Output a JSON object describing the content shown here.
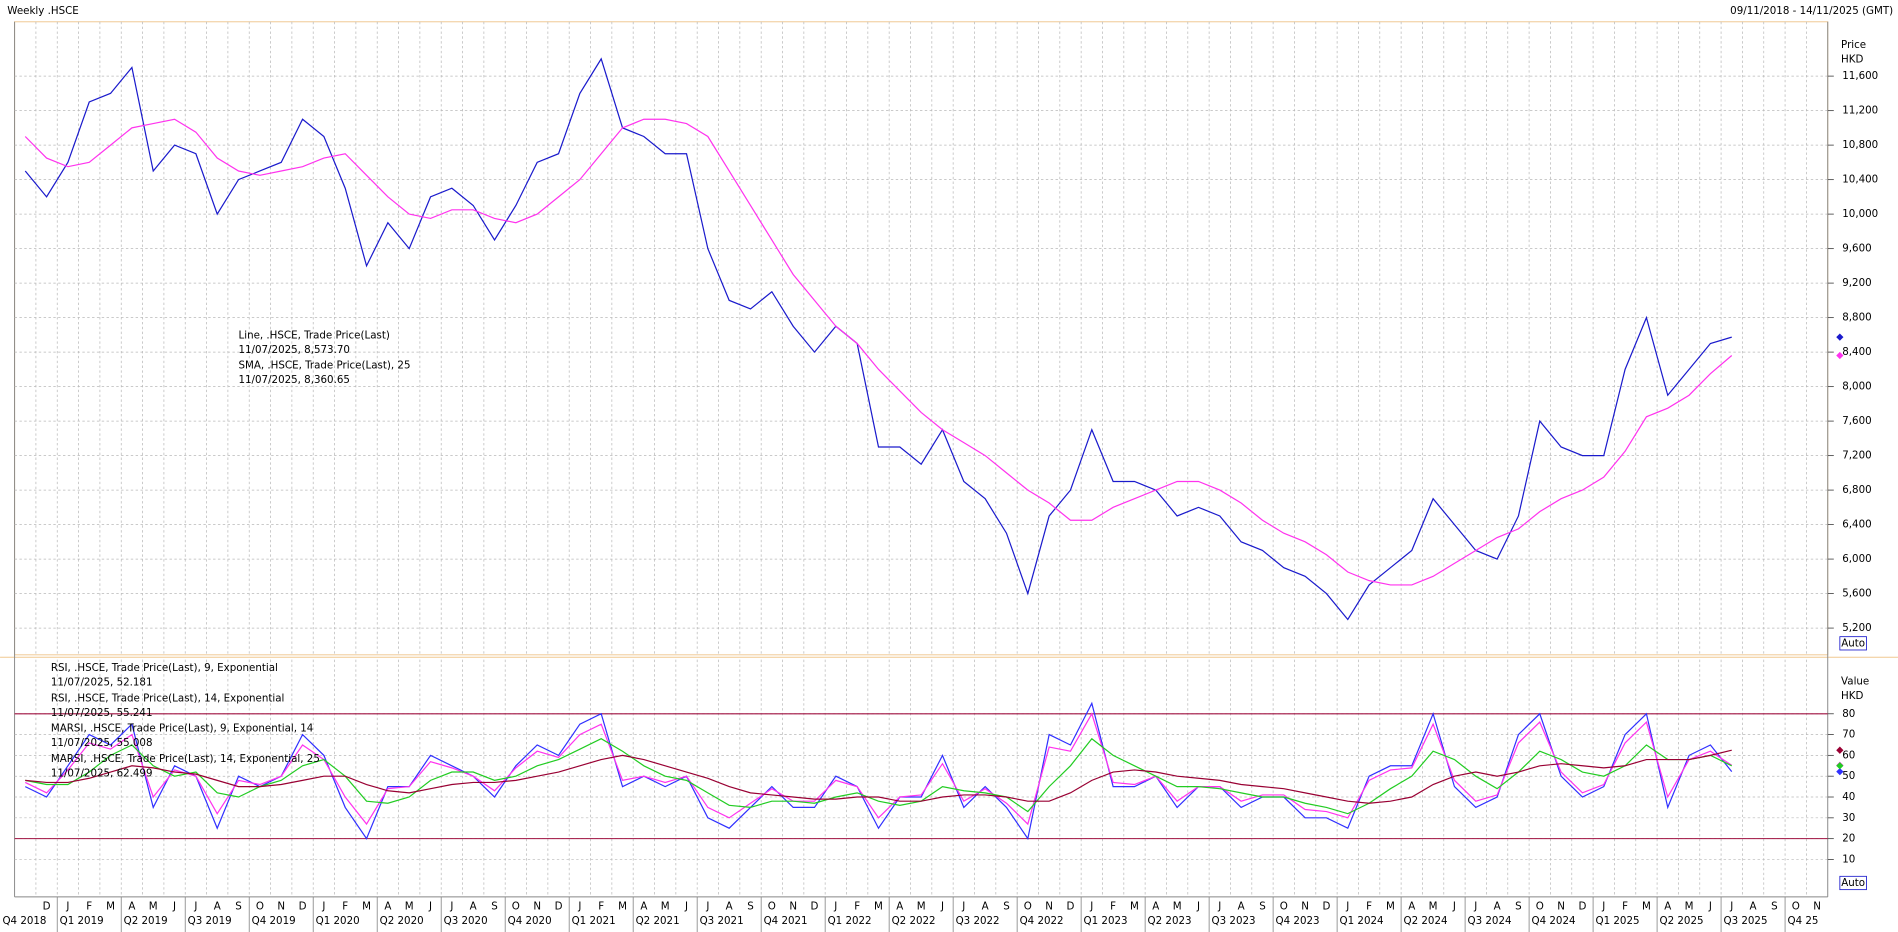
{
  "header": {
    "title": "Weekly .HSCE",
    "range": "09/11/2018 - 14/11/2025 (GMT)"
  },
  "chart_data": [
    {
      "type": "line",
      "axis_label": [
        "Price",
        "HKD"
      ],
      "button": "Auto",
      "grid": true,
      "ylim": [
        4890,
        12230
      ],
      "yticks": [
        {
          "value": 5200,
          "label": "5,200"
        },
        {
          "value": 5600,
          "label": "5,600"
        },
        {
          "value": 6000,
          "label": "6,000"
        },
        {
          "value": 6400,
          "label": "6,400"
        },
        {
          "value": 6800,
          "label": "6,800"
        },
        {
          "value": 7200,
          "label": "7,200"
        },
        {
          "value": 7600,
          "label": "7,600"
        },
        {
          "value": 8000,
          "label": "8,000"
        },
        {
          "value": 8400,
          "label": "8,400"
        },
        {
          "value": 8800,
          "label": "8,800"
        },
        {
          "value": 9200,
          "label": "9,200"
        },
        {
          "value": 9600,
          "label": "9,600"
        },
        {
          "value": 10000,
          "label": "10,000"
        },
        {
          "value": 10400,
          "label": "10,400"
        },
        {
          "value": 10800,
          "label": "10,800"
        },
        {
          "value": 11200,
          "label": "11,200"
        },
        {
          "value": 11600,
          "label": "11,600"
        }
      ],
      "series": [
        {
          "name": "Line, .HSCE, Trade Price(Last)",
          "last_label": "11/07/2025, 8,573.70",
          "color": "#1a1acc",
          "values": [
            10500,
            10200,
            10600,
            11300,
            11400,
            11700,
            10500,
            10800,
            10700,
            10000,
            10400,
            10500,
            10600,
            11100,
            10900,
            10300,
            9400,
            9900,
            9600,
            10200,
            10300,
            10100,
            9700,
            10100,
            10600,
            10700,
            11400,
            11800,
            11000,
            10900,
            10700,
            10700,
            9600,
            9000,
            8900,
            9100,
            8700,
            8400,
            8700,
            8500,
            7300,
            7300,
            7100,
            7500,
            6900,
            6700,
            6300,
            5600,
            6500,
            6800,
            7500,
            6900,
            6900,
            6800,
            6500,
            6600,
            6500,
            6200,
            6100,
            5900,
            5800,
            5600,
            5300,
            5700,
            5900,
            6100,
            6700,
            6400,
            6100,
            6000,
            6500,
            7600,
            7300,
            7200,
            7200,
            8200,
            8800,
            7900,
            8200,
            8500,
            8573.7,
            null,
            null,
            null,
            null
          ]
        },
        {
          "name": "SMA, .HSCE, Trade Price(Last), 25",
          "last_label": "11/07/2025, 8,360.65",
          "color": "#ff33ee",
          "values": [
            10900,
            10650,
            10550,
            10600,
            10800,
            11000,
            11050,
            11100,
            10950,
            10650,
            10500,
            10450,
            10500,
            10550,
            10650,
            10700,
            10450,
            10200,
            10000,
            9950,
            10050,
            10050,
            9950,
            9900,
            10000,
            10200,
            10400,
            10700,
            11000,
            11100,
            11100,
            11050,
            10900,
            10500,
            10100,
            9700,
            9300,
            9000,
            8700,
            8500,
            8200,
            7950,
            7700,
            7500,
            7350,
            7200,
            7000,
            6800,
            6650,
            6450,
            6450,
            6600,
            6700,
            6800,
            6900,
            6900,
            6800,
            6650,
            6450,
            6300,
            6200,
            6050,
            5850,
            5750,
            5700,
            5700,
            5800,
            5950,
            6100,
            6250,
            6350,
            6550,
            6700,
            6800,
            6950,
            7250,
            7650,
            7750,
            7900,
            8150,
            8360.65,
            null,
            null,
            null,
            null
          ]
        }
      ]
    },
    {
      "type": "line",
      "axis_label": [
        "Value",
        "HKD"
      ],
      "button": "Auto",
      "grid": true,
      "ylim": [
        -8,
        106
      ],
      "yticks": [
        10,
        20,
        30,
        40,
        50,
        60,
        70,
        80
      ],
      "hlines": [
        20,
        80
      ],
      "hline_color": "#a01040",
      "categories": [
        null,
        "D",
        "J",
        "F",
        "M",
        "A",
        "M",
        "J",
        "J",
        "A",
        "S",
        "O",
        "N",
        "D",
        "J",
        "F",
        "M",
        "A",
        "M",
        "J",
        "J",
        "A",
        "S",
        "O",
        "N",
        "D",
        "J",
        "F",
        "M",
        "A",
        "M",
        "J",
        "J",
        "A",
        "S",
        "O",
        "N",
        "D",
        "J",
        "F",
        "M",
        "A",
        "M",
        "J",
        "J",
        "A",
        "S",
        "O",
        "N",
        "D",
        "J",
        "F",
        "M",
        "A",
        "M",
        "J",
        "J",
        "A",
        "S",
        "O",
        "N",
        "D",
        "J",
        "F",
        "M",
        "A",
        "M",
        "J",
        "J",
        "A",
        "S",
        "O",
        "N",
        "D",
        "J",
        "F",
        "M",
        "A",
        "M",
        "J",
        "J",
        "A",
        "S",
        "O",
        "N"
      ],
      "quarters": [
        "Q4 2018",
        "Q1 2019",
        "Q2 2019",
        "Q3 2019",
        "Q4 2019",
        "Q1 2020",
        "Q2 2020",
        "Q3 2020",
        "Q4 2020",
        "Q1 2021",
        "Q2 2021",
        "Q3 2021",
        "Q4 2021",
        "Q1 2022",
        "Q2 2022",
        "Q3 2022",
        "Q4 2022",
        "Q1 2023",
        "Q2 2023",
        "Q3 2023",
        "Q4 2023",
        "Q1 2024",
        "Q2 2024",
        "Q3 2024",
        "Q4 2024",
        "Q1 2025",
        "Q2 2025",
        "Q3 2025",
        "Q4 25"
      ],
      "series": [
        {
          "name": "RSI, .HSCE, Trade Price(Last),  9, Exponential",
          "last_label": "11/07/2025, 52.181",
          "color": "#3030ff",
          "values": [
            45,
            40,
            55,
            70,
            65,
            75,
            35,
            55,
            50,
            25,
            50,
            45,
            50,
            70,
            60,
            35,
            20,
            45,
            45,
            60,
            55,
            50,
            40,
            55,
            65,
            60,
            75,
            80,
            45,
            50,
            45,
            50,
            30,
            25,
            35,
            45,
            35,
            35,
            50,
            45,
            25,
            40,
            40,
            60,
            35,
            45,
            35,
            20,
            70,
            65,
            85,
            45,
            45,
            50,
            35,
            45,
            45,
            35,
            40,
            40,
            30,
            30,
            25,
            50,
            55,
            55,
            80,
            45,
            35,
            40,
            70,
            80,
            50,
            40,
            45,
            70,
            80,
            35,
            60,
            65,
            52.181,
            null,
            null,
            null,
            null
          ]
        },
        {
          "name": "RSI, .HSCE, Trade Price(Last),  14, Exponential",
          "last_label": "11/07/2025, 55.241",
          "color": "#ff33ee",
          "values": [
            47,
            42,
            53,
            66,
            63,
            70,
            40,
            53,
            50,
            32,
            48,
            46,
            50,
            65,
            58,
            40,
            27,
            44,
            45,
            57,
            54,
            50,
            43,
            54,
            62,
            59,
            70,
            75,
            48,
            50,
            47,
            50,
            35,
            30,
            37,
            44,
            38,
            38,
            48,
            45,
            30,
            40,
            41,
            56,
            38,
            44,
            37,
            27,
            64,
            62,
            80,
            47,
            46,
            50,
            38,
            45,
            45,
            38,
            41,
            41,
            34,
            33,
            30,
            48,
            53,
            54,
            75,
            48,
            38,
            41,
            66,
            76,
            52,
            42,
            46,
            66,
            76,
            40,
            58,
            62,
            55.241,
            null,
            null,
            null,
            null
          ]
        },
        {
          "name": "MARSI, .HSCE, Trade Price(Last),  9, Exponential, 14",
          "last_label": "11/07/2025, 55.008",
          "color": "#22cc22",
          "values": [
            48,
            46,
            46,
            52,
            60,
            65,
            55,
            50,
            52,
            42,
            40,
            45,
            48,
            55,
            58,
            50,
            38,
            37,
            40,
            48,
            52,
            52,
            48,
            50,
            55,
            58,
            63,
            68,
            62,
            55,
            50,
            48,
            42,
            36,
            35,
            38,
            38,
            37,
            40,
            42,
            38,
            36,
            38,
            45,
            43,
            42,
            40,
            33,
            45,
            55,
            68,
            60,
            55,
            50,
            45,
            45,
            44,
            42,
            40,
            40,
            37,
            35,
            32,
            37,
            44,
            50,
            62,
            58,
            50,
            44,
            52,
            62,
            58,
            52,
            50,
            55,
            65,
            58,
            58,
            60,
            55.008,
            null,
            null,
            null,
            null
          ]
        },
        {
          "name": "MARSI, .HSCE, Trade Price(Last),  14, Exponential, 25",
          "last_label": "11/07/2025, 62.499",
          "color": "#990033",
          "values": [
            48,
            47,
            47,
            49,
            52,
            55,
            54,
            52,
            51,
            48,
            45,
            45,
            46,
            48,
            50,
            50,
            46,
            43,
            42,
            44,
            46,
            47,
            47,
            48,
            50,
            52,
            55,
            58,
            60,
            58,
            55,
            52,
            49,
            45,
            42,
            41,
            40,
            39,
            39,
            40,
            40,
            38,
            38,
            40,
            41,
            41,
            40,
            38,
            38,
            42,
            48,
            52,
            53,
            52,
            50,
            49,
            48,
            46,
            45,
            44,
            42,
            40,
            38,
            37,
            38,
            40,
            46,
            50,
            52,
            50,
            52,
            55,
            56,
            55,
            54,
            55,
            58,
            58,
            58,
            60,
            62.499,
            null,
            null,
            null,
            null
          ]
        }
      ]
    }
  ]
}
